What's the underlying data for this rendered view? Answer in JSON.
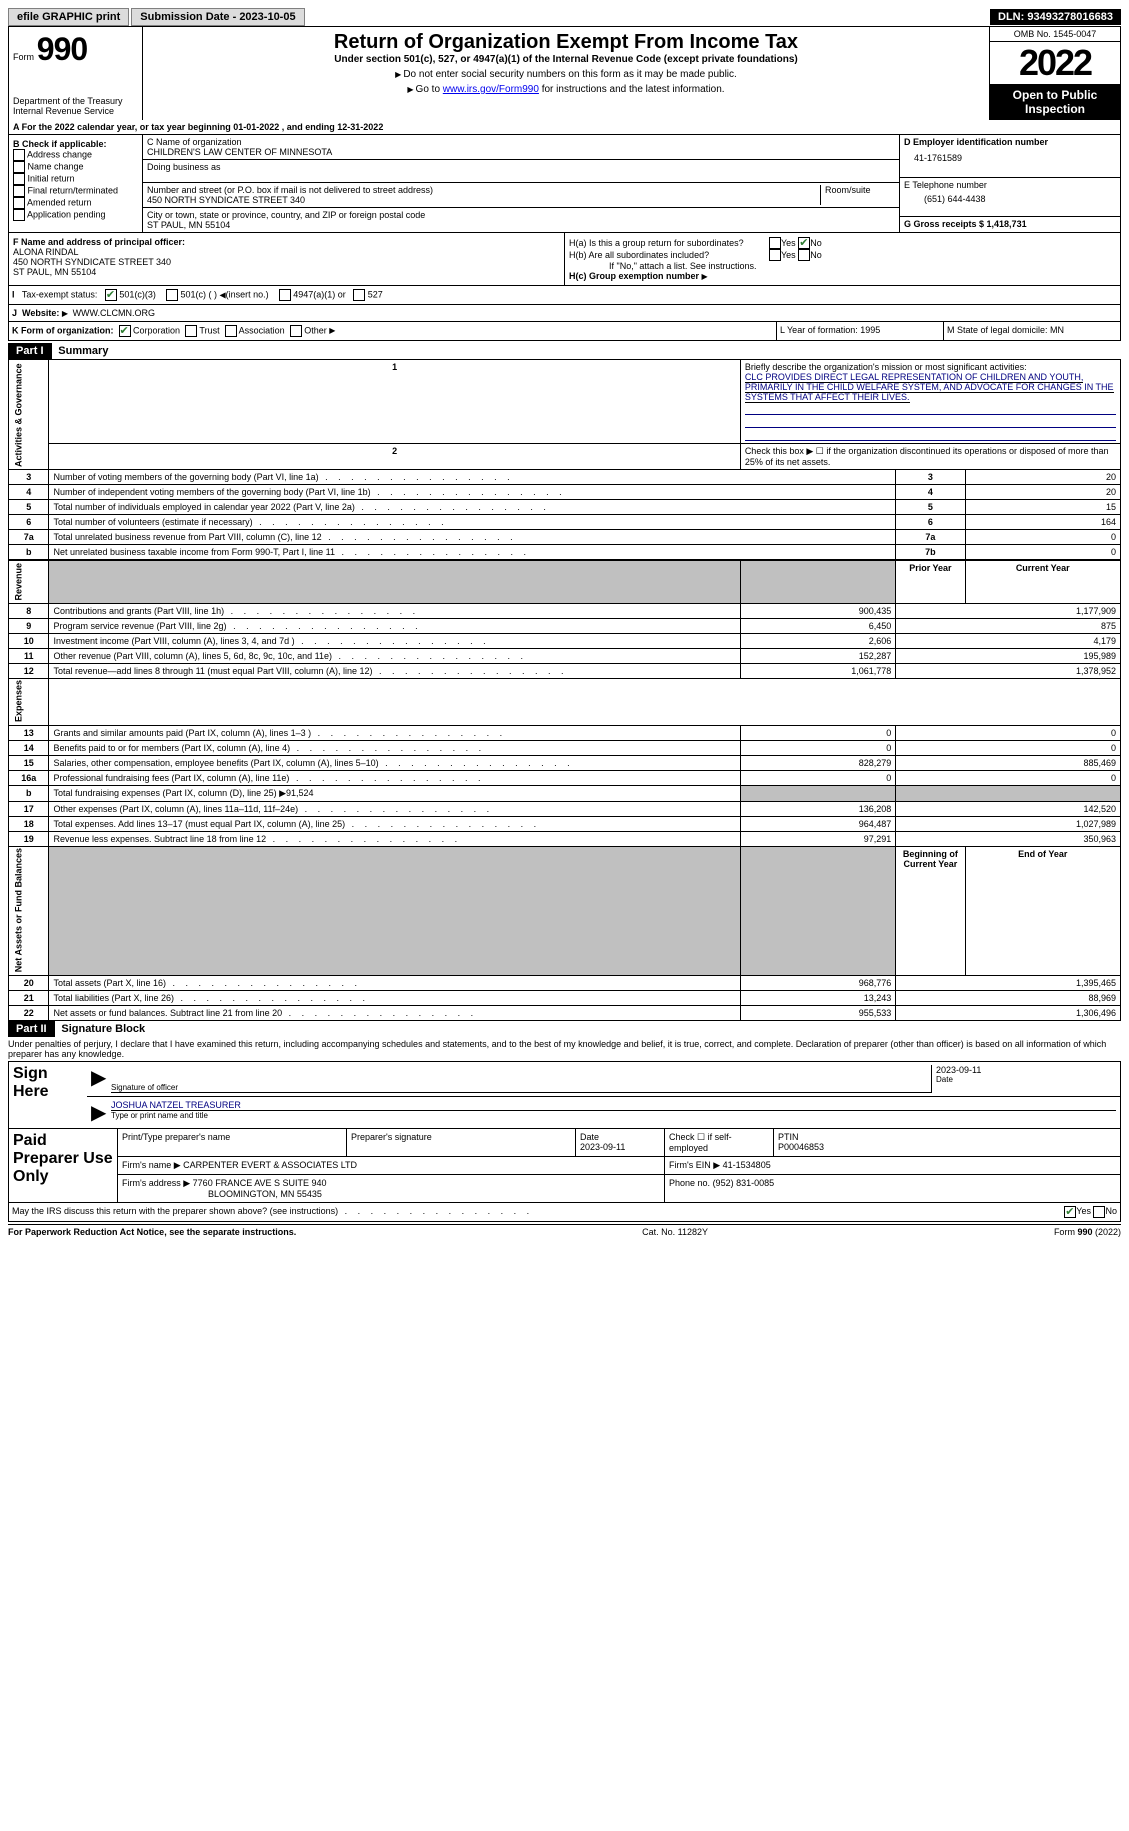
{
  "topbar": {
    "efile_label": "efile GRAPHIC print",
    "submission_label": "Submission Date - 2023-10-05",
    "dln_label": "DLN: 93493278016683"
  },
  "header": {
    "form_prefix": "Form",
    "form_number": "990",
    "title": "Return of Organization Exempt From Income Tax",
    "subtitle": "Under section 501(c), 527, or 4947(a)(1) of the Internal Revenue Code (except private foundations)",
    "note1": "Do not enter social security numbers on this form as it may be made public.",
    "note2_prefix": "Go to ",
    "note2_link": "www.irs.gov/Form990",
    "note2_suffix": " for instructions and the latest information.",
    "dept": "Department of the Treasury\nInternal Revenue Service",
    "omb": "OMB No. 1545-0047",
    "year": "2022",
    "open": "Open to Public Inspection"
  },
  "sectionA": {
    "cal_year": "A For the 2022 calendar year, or tax year beginning 01-01-2022    , and ending 12-31-2022",
    "b_label": "B Check if applicable:",
    "b_opts": [
      "Address change",
      "Name change",
      "Initial return",
      "Final return/terminated",
      "Amended return",
      "Application pending"
    ],
    "c_name_label": "C Name of organization",
    "c_name": "CHILDREN'S LAW CENTER OF MINNESOTA",
    "dba_label": "Doing business as",
    "addr_label": "Number and street (or P.O. box if mail is not delivered to street address)",
    "room_label": "Room/suite",
    "addr": "450 NORTH SYNDICATE STREET 340",
    "city_label": "City or town, state or province, country, and ZIP or foreign postal code",
    "city": "ST PAUL, MN  55104",
    "d_label": "D Employer identification number",
    "d_ein": "41-1761589",
    "e_label": "E Telephone number",
    "e_phone": "(651) 644-4438",
    "g_label": "G Gross receipts $ 1,418,731"
  },
  "officer": {
    "f_label": "F  Name and address of principal officer:",
    "name": "ALONA RINDAL",
    "addr1": "450 NORTH SYNDICATE STREET 340",
    "addr2": "ST PAUL, MN  55104",
    "ha_label": "H(a)  Is this a group return for subordinates?",
    "hb_label": "H(b)  Are all subordinates included?",
    "hb_note": "If \"No,\" attach a list. See instructions.",
    "hc_label": "H(c)  Group exemption number",
    "yes": "Yes",
    "no": "No"
  },
  "exempt": {
    "i_prefix": "I",
    "label": "Tax-exempt status:",
    "opt1": "501(c)(3)",
    "opt2": "501(c) (   )",
    "opt2_suffix": "(insert no.)",
    "opt3": "4947(a)(1) or",
    "opt4": "527"
  },
  "website": {
    "j": "J",
    "label": "Website:",
    "url": "WWW.CLCMN.ORG"
  },
  "formorg": {
    "k_label": "K Form of organization:",
    "opts": [
      "Corporation",
      "Trust",
      "Association",
      "Other"
    ],
    "l_label": "L Year of formation: 1995",
    "m_label": "M State of legal domicile: MN"
  },
  "part1": {
    "header": "Part I",
    "title": "Summary",
    "line1_label": "Briefly describe the organization's mission or most significant activities:",
    "line1_text": "CLC PROVIDES DIRECT LEGAL REPRESENTATION OF CHILDREN AND YOUTH, PRIMARILY IN THE CHILD WELFARE SYSTEM, AND ADVOCATE FOR CHANGES IN THE SYSTEMS THAT AFFECT THEIR LIVES.",
    "line2": "Check this box ▶ ☐  if the organization discontinued its operations or disposed of more than 25% of its net assets.",
    "vert_activities": "Activities & Governance",
    "vert_revenue": "Revenue",
    "vert_expenses": "Expenses",
    "vert_netassets": "Net Assets or Fund Balances",
    "rows_governance": [
      {
        "n": "3",
        "label": "Number of voting members of the governing body (Part VI, line 1a)",
        "box": "3",
        "val": "20"
      },
      {
        "n": "4",
        "label": "Number of independent voting members of the governing body (Part VI, line 1b)",
        "box": "4",
        "val": "20"
      },
      {
        "n": "5",
        "label": "Total number of individuals employed in calendar year 2022 (Part V, line 2a)",
        "box": "5",
        "val": "15"
      },
      {
        "n": "6",
        "label": "Total number of volunteers (estimate if necessary)",
        "box": "6",
        "val": "164"
      },
      {
        "n": "7a",
        "label": "Total unrelated business revenue from Part VIII, column (C), line 12",
        "box": "7a",
        "val": "0"
      },
      {
        "n": "b",
        "label": "Net unrelated business taxable income from Form 990-T, Part I, line 11",
        "box": "7b",
        "val": "0"
      }
    ],
    "prior_year": "Prior Year",
    "current_year": "Current Year",
    "rows_revenue": [
      {
        "n": "8",
        "label": "Contributions and grants (Part VIII, line 1h)",
        "py": "900,435",
        "cy": "1,177,909"
      },
      {
        "n": "9",
        "label": "Program service revenue (Part VIII, line 2g)",
        "py": "6,450",
        "cy": "875"
      },
      {
        "n": "10",
        "label": "Investment income (Part VIII, column (A), lines 3, 4, and 7d )",
        "py": "2,606",
        "cy": "4,179"
      },
      {
        "n": "11",
        "label": "Other revenue (Part VIII, column (A), lines 5, 6d, 8c, 9c, 10c, and 11e)",
        "py": "152,287",
        "cy": "195,989"
      },
      {
        "n": "12",
        "label": "Total revenue—add lines 8 through 11 (must equal Part VIII, column (A), line 12)",
        "py": "1,061,778",
        "cy": "1,378,952"
      }
    ],
    "rows_expenses": [
      {
        "n": "13",
        "label": "Grants and similar amounts paid (Part IX, column (A), lines 1–3 )",
        "py": "0",
        "cy": "0"
      },
      {
        "n": "14",
        "label": "Benefits paid to or for members (Part IX, column (A), line 4)",
        "py": "0",
        "cy": "0"
      },
      {
        "n": "15",
        "label": "Salaries, other compensation, employee benefits (Part IX, column (A), lines 5–10)",
        "py": "828,279",
        "cy": "885,469"
      },
      {
        "n": "16a",
        "label": "Professional fundraising fees (Part IX, column (A), line 11e)",
        "py": "0",
        "cy": "0"
      }
    ],
    "line16b": "Total fundraising expenses (Part IX, column (D), line 25) ▶91,524",
    "rows_expenses2": [
      {
        "n": "17",
        "label": "Other expenses (Part IX, column (A), lines 11a–11d, 11f–24e)",
        "py": "136,208",
        "cy": "142,520"
      },
      {
        "n": "18",
        "label": "Total expenses. Add lines 13–17 (must equal Part IX, column (A), line 25)",
        "py": "964,487",
        "cy": "1,027,989"
      },
      {
        "n": "19",
        "label": "Revenue less expenses. Subtract line 18 from line 12",
        "py": "97,291",
        "cy": "350,963"
      }
    ],
    "boy": "Beginning of Current Year",
    "eoy": "End of Year",
    "rows_netassets": [
      {
        "n": "20",
        "label": "Total assets (Part X, line 16)",
        "py": "968,776",
        "cy": "1,395,465"
      },
      {
        "n": "21",
        "label": "Total liabilities (Part X, line 26)",
        "py": "13,243",
        "cy": "88,969"
      },
      {
        "n": "22",
        "label": "Net assets or fund balances. Subtract line 21 from line 20",
        "py": "955,533",
        "cy": "1,306,496"
      }
    ]
  },
  "part2": {
    "header": "Part II",
    "title": "Signature Block",
    "declaration": "Under penalties of perjury, I declare that I have examined this return, including accompanying schedules and statements, and to the best of my knowledge and belief, it is true, correct, and complete. Declaration of preparer (other than officer) is based on all information of which preparer has any knowledge."
  },
  "sign": {
    "here_label": "Sign Here",
    "sig_officer": "Signature of officer",
    "date_label": "Date",
    "date_val": "2023-09-11",
    "name": "JOSHUA NATZEL  TREASURER",
    "type_label": "Type or print name and title"
  },
  "preparer": {
    "label": "Paid Preparer Use Only",
    "print_name_label": "Print/Type preparer's name",
    "sig_label": "Preparer's signature",
    "date_label": "Date",
    "date_val": "2023-09-11",
    "check_label": "Check ☐ if self-employed",
    "ptin_label": "PTIN",
    "ptin": "P00046853",
    "firm_name_label": "Firm's name    ▶",
    "firm_name": "CARPENTER EVERT & ASSOCIATES LTD",
    "firm_ein_label": "Firm's EIN ▶",
    "firm_ein": "41-1534805",
    "firm_addr_label": "Firm's address ▶",
    "firm_addr1": "7760 FRANCE AVE S SUITE 940",
    "firm_addr2": "BLOOMINGTON, MN  55435",
    "phone_label": "Phone no.",
    "phone": "(952) 831-0085"
  },
  "footer": {
    "discuss": "May the IRS discuss this return with the preparer shown above? (see instructions)",
    "yes": "Yes",
    "no": "No",
    "paperwork": "For Paperwork Reduction Act Notice, see the separate instructions.",
    "cat": "Cat. No. 11282Y",
    "formref": "Form 990 (2022)"
  }
}
